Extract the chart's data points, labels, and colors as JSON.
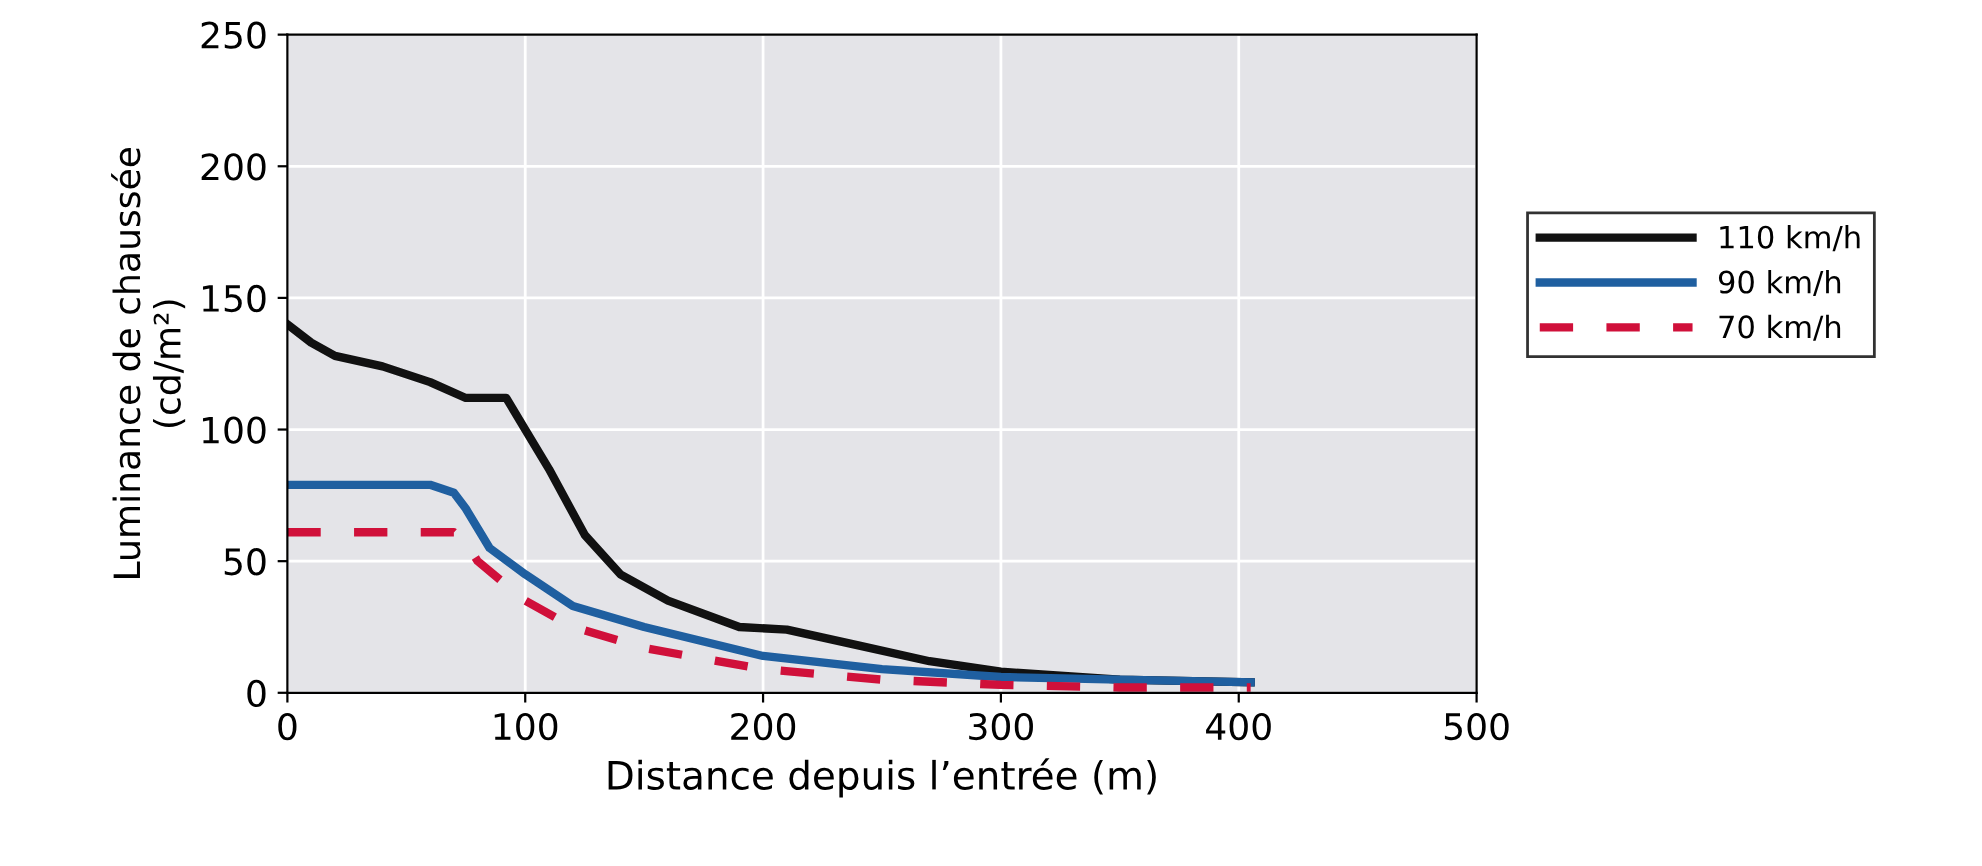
{
  "chart_data": {
    "type": "line",
    "xlabel": "Distance depuis l’entrée (m)",
    "ylabel": "Luminance de chaussée\n(cd/m²)",
    "xlim": [
      0,
      500
    ],
    "ylim": [
      0,
      250
    ],
    "xticks": [
      0,
      100,
      200,
      300,
      400,
      500
    ],
    "yticks": [
      0,
      50,
      100,
      150,
      200,
      250
    ],
    "grid": true,
    "legend": "right",
    "series": [
      {
        "name": "110 km/h",
        "color": "#111111",
        "line_style": "solid",
        "x": [
          0,
          10,
          20,
          40,
          60,
          75,
          92,
          100,
          110,
          125,
          140,
          160,
          190,
          210,
          240,
          270,
          300,
          350,
          405
        ],
        "values": [
          140,
          133,
          128,
          124,
          118,
          112,
          112,
          100,
          85,
          60,
          45,
          35,
          25,
          24,
          18,
          12,
          8,
          5,
          4
        ]
      },
      {
        "name": "90 km/h",
        "color": "#1f5fa0",
        "line_style": "solid",
        "x": [
          0,
          60,
          70,
          75,
          85,
          100,
          120,
          150,
          200,
          250,
          300,
          350,
          405
        ],
        "values": [
          79,
          79,
          76,
          70,
          55,
          45,
          33,
          25,
          14,
          9,
          6,
          5,
          4
        ]
      },
      {
        "name": "70 km/h",
        "color": "#d0103a",
        "line_style": "dashed",
        "x": [
          0,
          70,
          75,
          80,
          100,
          120,
          150,
          200,
          250,
          300,
          350,
          405
        ],
        "values": [
          61,
          61,
          57,
          50,
          35,
          25,
          17,
          9,
          5,
          3,
          2,
          2
        ]
      }
    ]
  }
}
